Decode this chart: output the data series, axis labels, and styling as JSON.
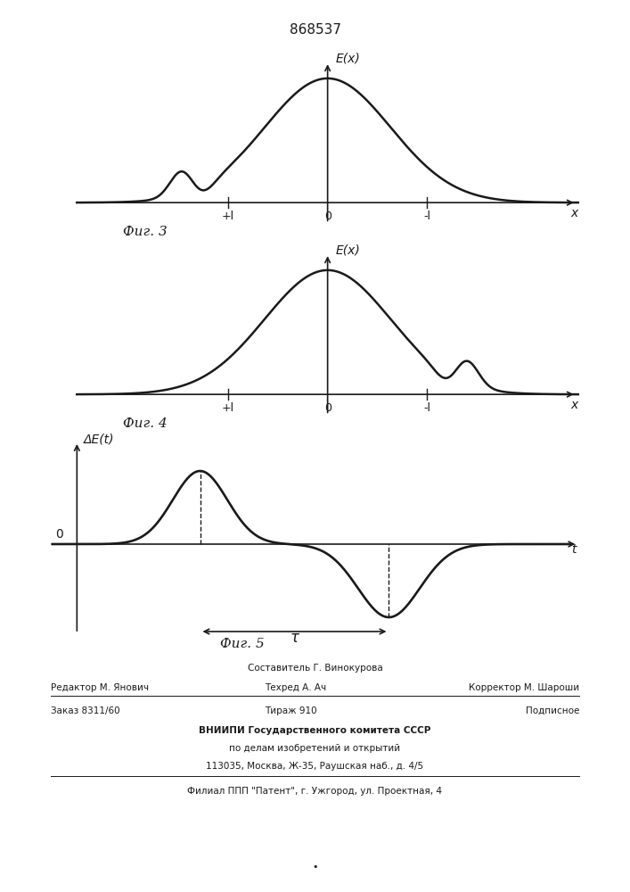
{
  "title": "868537",
  "fig3_caption": "Фиг. 3",
  "fig4_caption": "Фиг. 4",
  "fig5_caption": "Фиг. 5",
  "fig3_ylabel": "E(x)",
  "fig4_ylabel": "E(x)",
  "fig5_ylabel": "ΔE(t)",
  "fig3_xlabel": "x",
  "fig4_xlabel": "x",
  "fig5_xlabel": "t",
  "axis_label_plus_l": "+l",
  "axis_label_minus_l": "-l",
  "axis_label_zero": "0",
  "fig5_tau": "τ",
  "fig5_zero": "0",
  "footer_line1": "Составитель Г. Винокурова",
  "footer_line2_left": "Редактор М. Янович",
  "footer_line2_mid": "Техред А. Ач",
  "footer_line2_right": "Корректор М. Шароши",
  "footer_line3_left": "Заказ 8311/60",
  "footer_line3_mid": "Тираж 910",
  "footer_line3_right": "Подписное",
  "footer_line4": "ВНИИПИ Государственного комитета СССР",
  "footer_line5": "по делам изобретений и открытий",
  "footer_line6": "113035, Москва, Ж-35, Раушская наб., д. 4/5",
  "footer_line7": "Филиал ППП \"Патент\", г. Ужгород, ул. Проектная, 4",
  "bg_color": "#ffffff",
  "line_color": "#1a1a1a",
  "axis_color": "#1a1a1a"
}
